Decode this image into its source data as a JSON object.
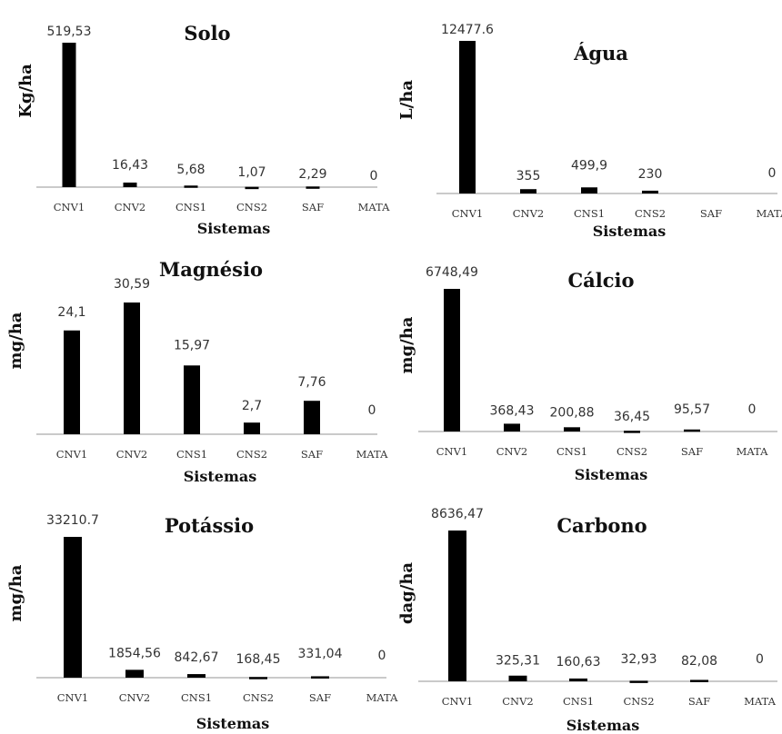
{
  "colors": {
    "bar": "#000000",
    "axis": "#aaaaaa",
    "text": "#333333"
  },
  "chart_data": [
    {
      "type": "bar",
      "title": "Solo",
      "ylabel": "Kg/ha",
      "xlabel": "Sistemas",
      "categories": [
        "CNV1",
        "CNV2",
        "CNS1",
        "CNS2",
        "SAF",
        "MATA"
      ],
      "values": [
        519.53,
        16.43,
        5.68,
        1.07,
        2.29,
        0
      ],
      "value_labels": [
        "519,53",
        "16,43",
        "5,68",
        "1,07",
        "2,29",
        "0"
      ],
      "ylim": [
        0,
        519.53
      ]
    },
    {
      "type": "bar",
      "title": "Água",
      "ylabel": "L/ha",
      "xlabel": "Sistemas",
      "categories": [
        "CNV1",
        "CNV2",
        "CNS1",
        "CNS2",
        "SAF",
        "MATA"
      ],
      "values": [
        12477.6,
        355,
        499.9,
        230,
        null,
        0
      ],
      "value_labels": [
        "12477.6",
        "355",
        "499,9",
        "230",
        "",
        "0"
      ],
      "ylim": [
        0,
        12477.6
      ]
    },
    {
      "type": "bar",
      "title": "Magnésio",
      "ylabel": "mg/ha",
      "xlabel": "Sistemas",
      "categories": [
        "CNV1",
        "CNV2",
        "CNS1",
        "CNS2",
        "SAF",
        "MATA"
      ],
      "values": [
        24.1,
        30.59,
        15.97,
        2.7,
        7.76,
        0
      ],
      "value_labels": [
        "24,1",
        "30,59",
        "15,97",
        "2,7",
        "7,76",
        "0"
      ],
      "ylim": [
        0,
        30.59
      ]
    },
    {
      "type": "bar",
      "title": "Cálcio",
      "ylabel": "mg/ha",
      "xlabel": "Sistemas",
      "categories": [
        "CNV1",
        "CNV2",
        "CNS1",
        "CNS2",
        "SAF",
        "MATA"
      ],
      "values": [
        6748.49,
        368.43,
        200.88,
        36.45,
        95.57,
        0
      ],
      "value_labels": [
        "6748,49",
        "368,43",
        "200,88",
        "36,45",
        "95,57",
        "0"
      ],
      "ylim": [
        0,
        6748.49
      ]
    },
    {
      "type": "bar",
      "title": "Potássio",
      "ylabel": "mg/ha",
      "xlabel": "Sistemas",
      "categories": [
        "CNV1",
        "CNV2",
        "CNS1",
        "CNS2",
        "SAF",
        "MATA"
      ],
      "values": [
        33210.7,
        1854.56,
        842.67,
        168.45,
        331.04,
        0
      ],
      "value_labels": [
        "33210.7",
        "1854,56",
        "842,67",
        "168,45",
        "331,04",
        "0"
      ],
      "ylim": [
        0,
        33210.7
      ]
    },
    {
      "type": "bar",
      "title": "Carbono",
      "ylabel": "dag/ha",
      "xlabel": "Sistemas",
      "categories": [
        "CNV1",
        "CNV2",
        "CNS1",
        "CNS2",
        "SAF",
        "MATA"
      ],
      "values": [
        8636.47,
        325.31,
        160.63,
        32.93,
        82.08,
        0
      ],
      "value_labels": [
        "8636,47",
        "325,31",
        "160,63",
        "32,93",
        "82,08",
        "0"
      ],
      "ylim": [
        0,
        8636.47
      ]
    }
  ]
}
